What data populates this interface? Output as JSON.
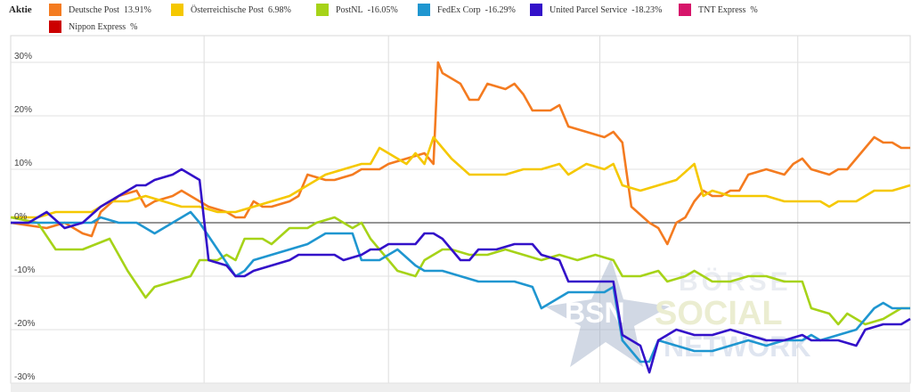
{
  "legend": {
    "title": "Aktie",
    "items": [
      {
        "name": "Deutsche Post",
        "value": "13.91%",
        "color": "#f47b20"
      },
      {
        "name": "Österreichische Post",
        "value": "6.98%",
        "color": "#f5c800"
      },
      {
        "name": "PostNL",
        "value": "-16.05%",
        "color": "#a6d318"
      },
      {
        "name": "FedEx Corp",
        "value": "-16.29%",
        "color": "#1f96d0"
      },
      {
        "name": "United Parcel Service",
        "value": "-18.23%",
        "color": "#3311c9"
      },
      {
        "name": "TNT Express",
        "value": "%",
        "color": "#d6156a"
      },
      {
        "name": "Nippon Express",
        "value": "%",
        "color": "#cc0000"
      }
    ]
  },
  "watermark": {
    "letters": "BSN",
    "line1": "BÖRSE",
    "line2": "SOCIAL",
    "line3": "NETWORK"
  },
  "chart_data": {
    "type": "line",
    "ylim": [
      -30,
      35
    ],
    "yticks": [
      30,
      20,
      10,
      0,
      -10,
      -20,
      -30
    ],
    "ytick_labels": [
      "30%",
      "20%",
      "10%",
      "0%",
      "-10%",
      "-20%",
      "-30%"
    ],
    "x_range": [
      0,
      100
    ],
    "grid": true,
    "legend_placement": "top",
    "series": [
      {
        "name": "Deutsche Post",
        "color": "#f47b20",
        "points": [
          [
            0,
            0
          ],
          [
            4,
            -1
          ],
          [
            6,
            0
          ],
          [
            8,
            -2
          ],
          [
            9,
            -2.5
          ],
          [
            10,
            2
          ],
          [
            12,
            5
          ],
          [
            14,
            6
          ],
          [
            15,
            3
          ],
          [
            16,
            4
          ],
          [
            18,
            5
          ],
          [
            19,
            6
          ],
          [
            20,
            5
          ],
          [
            21,
            4
          ],
          [
            22,
            3
          ],
          [
            24,
            2
          ],
          [
            25,
            1
          ],
          [
            26,
            1
          ],
          [
            27,
            4
          ],
          [
            28,
            3
          ],
          [
            29,
            3
          ],
          [
            31,
            4
          ],
          [
            32,
            5
          ],
          [
            33,
            9
          ],
          [
            35,
            8
          ],
          [
            36,
            8
          ],
          [
            38,
            9
          ],
          [
            39,
            10
          ],
          [
            41,
            10
          ],
          [
            42,
            11
          ],
          [
            44,
            12
          ],
          [
            46,
            13
          ],
          [
            47,
            11
          ],
          [
            47.5,
            30
          ],
          [
            48,
            28
          ],
          [
            50,
            26
          ],
          [
            51,
            23
          ],
          [
            52,
            23
          ],
          [
            53,
            26
          ],
          [
            55,
            25
          ],
          [
            56,
            26
          ],
          [
            57,
            24
          ],
          [
            58,
            21
          ],
          [
            60,
            21
          ],
          [
            61,
            22
          ],
          [
            62,
            18
          ],
          [
            64,
            17
          ],
          [
            66,
            16
          ],
          [
            67,
            17
          ],
          [
            68,
            15
          ],
          [
            69,
            3
          ],
          [
            71,
            0
          ],
          [
            72,
            -1
          ],
          [
            73,
            -4
          ],
          [
            74,
            0
          ],
          [
            75,
            1
          ],
          [
            76,
            4
          ],
          [
            77,
            6
          ],
          [
            78,
            5
          ],
          [
            79,
            5
          ],
          [
            80,
            6
          ],
          [
            81,
            6
          ],
          [
            82,
            9
          ],
          [
            84,
            10
          ],
          [
            86,
            9
          ],
          [
            87,
            11
          ],
          [
            88,
            12
          ],
          [
            89,
            10
          ],
          [
            91,
            9
          ],
          [
            92,
            10
          ],
          [
            93,
            10
          ],
          [
            94,
            12
          ],
          [
            95,
            14
          ],
          [
            96,
            16
          ],
          [
            97,
            15
          ],
          [
            98,
            15
          ],
          [
            99,
            14
          ],
          [
            100,
            14
          ]
        ]
      },
      {
        "name": "Österreichische Post",
        "color": "#f5c800",
        "points": [
          [
            0,
            1
          ],
          [
            3,
            1
          ],
          [
            5,
            2
          ],
          [
            7,
            2
          ],
          [
            9,
            2
          ],
          [
            11,
            4
          ],
          [
            13,
            4
          ],
          [
            15,
            5
          ],
          [
            17,
            4
          ],
          [
            19,
            3
          ],
          [
            21,
            3
          ],
          [
            23,
            2
          ],
          [
            25,
            2
          ],
          [
            27,
            3
          ],
          [
            29,
            4
          ],
          [
            31,
            5
          ],
          [
            33,
            7
          ],
          [
            35,
            9
          ],
          [
            37,
            10
          ],
          [
            39,
            11
          ],
          [
            40,
            11
          ],
          [
            41,
            14
          ],
          [
            42,
            13
          ],
          [
            43,
            12
          ],
          [
            44,
            11
          ],
          [
            45,
            13
          ],
          [
            46,
            11
          ],
          [
            47,
            16
          ],
          [
            49,
            12
          ],
          [
            51,
            9
          ],
          [
            53,
            9
          ],
          [
            55,
            9
          ],
          [
            57,
            10
          ],
          [
            59,
            10
          ],
          [
            61,
            11
          ],
          [
            62,
            9
          ],
          [
            64,
            11
          ],
          [
            66,
            10
          ],
          [
            67,
            11
          ],
          [
            68,
            7
          ],
          [
            70,
            6
          ],
          [
            72,
            7
          ],
          [
            74,
            8
          ],
          [
            76,
            11
          ],
          [
            77,
            5
          ],
          [
            78,
            6
          ],
          [
            80,
            5
          ],
          [
            82,
            5
          ],
          [
            84,
            5
          ],
          [
            86,
            4
          ],
          [
            88,
            4
          ],
          [
            90,
            4
          ],
          [
            91,
            3
          ],
          [
            92,
            4
          ],
          [
            94,
            4
          ],
          [
            96,
            6
          ],
          [
            98,
            6
          ],
          [
            100,
            7
          ]
        ]
      },
      {
        "name": "PostNL",
        "color": "#a6d318",
        "points": [
          [
            0,
            1
          ],
          [
            3,
            0
          ],
          [
            5,
            -5
          ],
          [
            8,
            -5
          ],
          [
            11,
            -3
          ],
          [
            13,
            -9
          ],
          [
            15,
            -14
          ],
          [
            16,
            -12
          ],
          [
            18,
            -11
          ],
          [
            20,
            -10
          ],
          [
            21,
            -7
          ],
          [
            23,
            -7
          ],
          [
            24,
            -6
          ],
          [
            25,
            -7
          ],
          [
            26,
            -3
          ],
          [
            28,
            -3
          ],
          [
            29,
            -4
          ],
          [
            31,
            -1
          ],
          [
            33,
            -1
          ],
          [
            34,
            0
          ],
          [
            36,
            1
          ],
          [
            37,
            0
          ],
          [
            38,
            -1
          ],
          [
            39,
            0
          ],
          [
            40,
            -3
          ],
          [
            41,
            -5
          ],
          [
            43,
            -9
          ],
          [
            45,
            -10
          ],
          [
            46,
            -7
          ],
          [
            48,
            -5
          ],
          [
            49,
            -5
          ],
          [
            51,
            -6
          ],
          [
            53,
            -6
          ],
          [
            55,
            -5
          ],
          [
            57,
            -6
          ],
          [
            59,
            -7
          ],
          [
            61,
            -6
          ],
          [
            63,
            -7
          ],
          [
            65,
            -6
          ],
          [
            67,
            -7
          ],
          [
            68,
            -10
          ],
          [
            70,
            -10
          ],
          [
            72,
            -9
          ],
          [
            73,
            -11
          ],
          [
            75,
            -10
          ],
          [
            76,
            -9
          ],
          [
            78,
            -11
          ],
          [
            80,
            -11
          ],
          [
            82,
            -10
          ],
          [
            84,
            -10
          ],
          [
            86,
            -11
          ],
          [
            88,
            -11
          ],
          [
            89,
            -16
          ],
          [
            91,
            -17
          ],
          [
            92,
            -19
          ],
          [
            93,
            -17
          ],
          [
            95,
            -19
          ],
          [
            97,
            -18
          ],
          [
            99,
            -16
          ],
          [
            100,
            -16
          ]
        ]
      },
      {
        "name": "FedEx Corp",
        "color": "#1f96d0",
        "points": [
          [
            0,
            0
          ],
          [
            3,
            0
          ],
          [
            5,
            0
          ],
          [
            7,
            0
          ],
          [
            9,
            0
          ],
          [
            10,
            1
          ],
          [
            12,
            0
          ],
          [
            14,
            0
          ],
          [
            15,
            -1
          ],
          [
            16,
            -2
          ],
          [
            18,
            0
          ],
          [
            20,
            2
          ],
          [
            21,
            0
          ],
          [
            23,
            -5
          ],
          [
            25,
            -10
          ],
          [
            26,
            -9
          ],
          [
            27,
            -7
          ],
          [
            29,
            -6
          ],
          [
            31,
            -5
          ],
          [
            33,
            -4
          ],
          [
            34,
            -3
          ],
          [
            35,
            -2
          ],
          [
            37,
            -2
          ],
          [
            38,
            -2
          ],
          [
            39,
            -7
          ],
          [
            41,
            -7
          ],
          [
            43,
            -5
          ],
          [
            45,
            -8
          ],
          [
            46,
            -9
          ],
          [
            48,
            -9
          ],
          [
            50,
            -10
          ],
          [
            52,
            -11
          ],
          [
            54,
            -11
          ],
          [
            56,
            -11
          ],
          [
            58,
            -12
          ],
          [
            59,
            -16
          ],
          [
            60,
            -15
          ],
          [
            62,
            -13
          ],
          [
            64,
            -13
          ],
          [
            66,
            -13
          ],
          [
            67,
            -12
          ],
          [
            68,
            -22
          ],
          [
            70,
            -26
          ],
          [
            71,
            -26
          ],
          [
            72,
            -22
          ],
          [
            74,
            -23
          ],
          [
            76,
            -24
          ],
          [
            78,
            -24
          ],
          [
            80,
            -23
          ],
          [
            82,
            -22
          ],
          [
            84,
            -23
          ],
          [
            86,
            -22
          ],
          [
            88,
            -22
          ],
          [
            89,
            -21
          ],
          [
            90,
            -22
          ],
          [
            92,
            -21
          ],
          [
            94,
            -20
          ],
          [
            96,
            -16
          ],
          [
            97,
            -15
          ],
          [
            98,
            -16
          ],
          [
            100,
            -16
          ]
        ]
      },
      {
        "name": "United Parcel Service",
        "color": "#3311c9",
        "points": [
          [
            0,
            0
          ],
          [
            2,
            0
          ],
          [
            4,
            2
          ],
          [
            6,
            -1
          ],
          [
            8,
            0
          ],
          [
            10,
            3
          ],
          [
            12,
            5
          ],
          [
            14,
            7
          ],
          [
            15,
            7
          ],
          [
            16,
            8
          ],
          [
            18,
            9
          ],
          [
            19,
            10
          ],
          [
            20,
            9
          ],
          [
            21,
            8
          ],
          [
            22,
            -7
          ],
          [
            24,
            -8
          ],
          [
            25,
            -10
          ],
          [
            26,
            -10
          ],
          [
            27,
            -9
          ],
          [
            29,
            -8
          ],
          [
            31,
            -7
          ],
          [
            32,
            -6
          ],
          [
            34,
            -6
          ],
          [
            36,
            -6
          ],
          [
            37,
            -7
          ],
          [
            39,
            -6
          ],
          [
            40,
            -5
          ],
          [
            41,
            -5
          ],
          [
            42,
            -4
          ],
          [
            44,
            -4
          ],
          [
            45,
            -4
          ],
          [
            46,
            -2
          ],
          [
            47,
            -2
          ],
          [
            48,
            -3
          ],
          [
            49,
            -5
          ],
          [
            50,
            -7
          ],
          [
            51,
            -7
          ],
          [
            52,
            -5
          ],
          [
            54,
            -5
          ],
          [
            56,
            -4
          ],
          [
            58,
            -4
          ],
          [
            59,
            -6
          ],
          [
            61,
            -7
          ],
          [
            62,
            -11
          ],
          [
            64,
            -11
          ],
          [
            66,
            -11
          ],
          [
            67,
            -11
          ],
          [
            68,
            -21
          ],
          [
            70,
            -23
          ],
          [
            71,
            -28
          ],
          [
            72,
            -22
          ],
          [
            74,
            -20
          ],
          [
            76,
            -21
          ],
          [
            78,
            -21
          ],
          [
            80,
            -20
          ],
          [
            82,
            -21
          ],
          [
            84,
            -22
          ],
          [
            86,
            -22
          ],
          [
            88,
            -21
          ],
          [
            89,
            -22
          ],
          [
            90,
            -22
          ],
          [
            92,
            -22
          ],
          [
            94,
            -23
          ],
          [
            95,
            -20
          ],
          [
            97,
            -19
          ],
          [
            99,
            -19
          ],
          [
            100,
            -18
          ]
        ]
      }
    ]
  }
}
